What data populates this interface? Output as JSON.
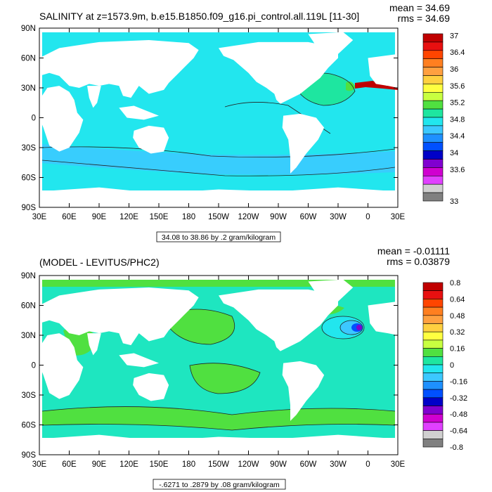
{
  "panels": [
    {
      "title": "SALINITY at z=1573.9m, b.e15.B1850.f09_g16.pi_control.all.119L [11-30]",
      "mean_label": "mean = 34.69",
      "rms_label": "rms = 34.69",
      "info": "34.08 to 38.86 by .2 gram/kilogram",
      "ocean_color": "#22e6ee",
      "colorbar_labels": [
        "37",
        "36.4",
        "36",
        "35.6",
        "35.2",
        "34.8",
        "34.4",
        "34",
        "33.6",
        "33"
      ],
      "colors": [
        "#c00000",
        "#e81010",
        "#ff4500",
        "#ff7f20",
        "#ffa040",
        "#ffd040",
        "#ffff40",
        "#c8ff40",
        "#50e040",
        "#1ee6a0",
        "#22e6ee",
        "#3cc8ff",
        "#1e90ff",
        "#0050ff",
        "#0000c8",
        "#8000d0",
        "#d000d0",
        "#e040ff",
        "#d0d0d0",
        "#808080"
      ]
    },
    {
      "title": "(MODEL - LEVITUS/PHC2)",
      "mean_label": "mean = -0.01111",
      "rms_label": "rms = 0.03879",
      "info": "-.6271 to .2879 by .08 gram/kilogram",
      "ocean_color": "#1ee6c0",
      "colorbar_labels": [
        "0.8",
        "0.64",
        "0.48",
        "0.32",
        "0.16",
        "0",
        "-0.16",
        "-0.32",
        "-0.48",
        "-0.64",
        "-0.8"
      ],
      "colors": [
        "#c00000",
        "#e81010",
        "#ff4500",
        "#ff7f20",
        "#ffa040",
        "#ffd040",
        "#ffff40",
        "#c8ff40",
        "#50e040",
        "#1ee6a0",
        "#22e6ee",
        "#3cc8ff",
        "#1e90ff",
        "#0050ff",
        "#0000c8",
        "#8000d0",
        "#d000d0",
        "#e040ff",
        "#d0d0d0",
        "#808080"
      ]
    }
  ],
  "lat_labels": [
    "90N",
    "60N",
    "30N",
    "0",
    "30S",
    "60S",
    "90S"
  ],
  "lon_labels": [
    "30E",
    "60E",
    "90E",
    "120E",
    "150E",
    "180",
    "150W",
    "120W",
    "90W",
    "60W",
    "30W",
    "0",
    "30E"
  ]
}
